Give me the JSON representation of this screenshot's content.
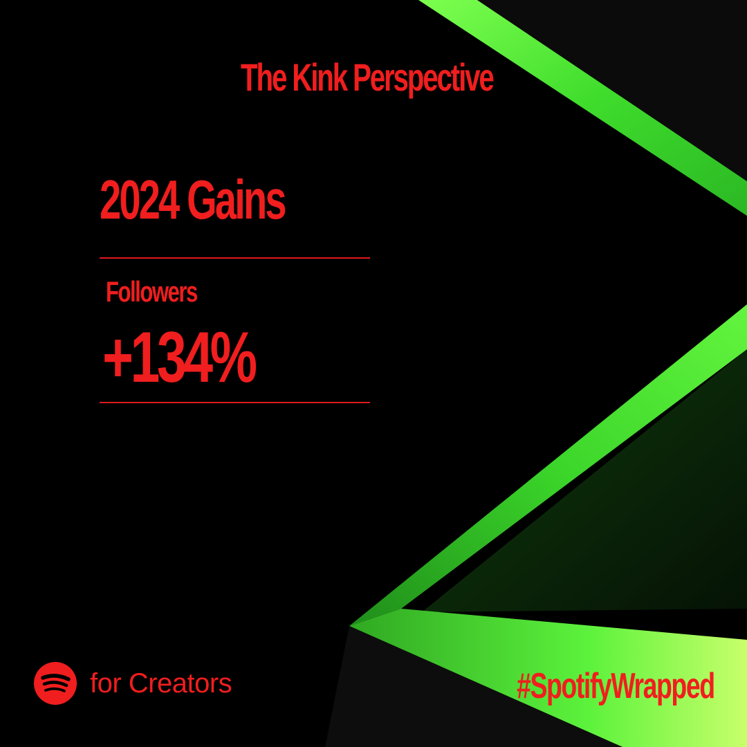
{
  "header": {
    "title": "The Kink Perspective"
  },
  "section": {
    "heading": "2024 Gains"
  },
  "stats": [
    {
      "label": "Followers",
      "value": "+134%"
    }
  ],
  "footer": {
    "brand_text": "for Creators",
    "brand_icon": "spotify-logo-icon",
    "hashtag": "#SpotifyWrapped"
  },
  "colors": {
    "accent_red": "#f01e1e",
    "background": "#000000",
    "green_bright": "#5cff3a",
    "green_dark": "#1f9a1a"
  }
}
